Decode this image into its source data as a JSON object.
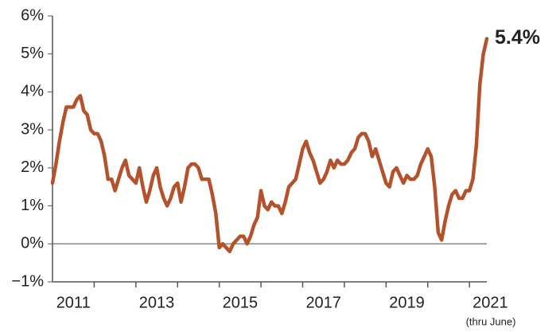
{
  "chart_data": {
    "type": "line",
    "x": [
      2011,
      2011.083,
      2011.167,
      2011.25,
      2011.333,
      2011.417,
      2011.5,
      2011.583,
      2011.667,
      2011.75,
      2011.833,
      2011.917,
      2012,
      2012.083,
      2012.167,
      2012.25,
      2012.333,
      2012.417,
      2012.5,
      2012.583,
      2012.667,
      2012.75,
      2012.833,
      2012.917,
      2013,
      2013.083,
      2013.167,
      2013.25,
      2013.333,
      2013.417,
      2013.5,
      2013.583,
      2013.667,
      2013.75,
      2013.833,
      2013.917,
      2014,
      2014.083,
      2014.167,
      2014.25,
      2014.333,
      2014.417,
      2014.5,
      2014.583,
      2014.667,
      2014.75,
      2014.833,
      2014.917,
      2015,
      2015.083,
      2015.167,
      2015.25,
      2015.333,
      2015.417,
      2015.5,
      2015.583,
      2015.667,
      2015.75,
      2015.833,
      2015.917,
      2016,
      2016.083,
      2016.167,
      2016.25,
      2016.333,
      2016.417,
      2016.5,
      2016.583,
      2016.667,
      2016.75,
      2016.833,
      2016.917,
      2017,
      2017.083,
      2017.167,
      2017.25,
      2017.333,
      2017.417,
      2017.5,
      2017.583,
      2017.667,
      2017.75,
      2017.833,
      2017.917,
      2018,
      2018.083,
      2018.167,
      2018.25,
      2018.333,
      2018.417,
      2018.5,
      2018.583,
      2018.667,
      2018.75,
      2018.833,
      2018.917,
      2019,
      2019.083,
      2019.167,
      2019.25,
      2019.333,
      2019.417,
      2019.5,
      2019.583,
      2019.667,
      2019.75,
      2019.833,
      2019.917,
      2020,
      2020.083,
      2020.167,
      2020.25,
      2020.333,
      2020.417,
      2020.5,
      2020.583,
      2020.667,
      2020.75,
      2020.833,
      2020.917,
      2021,
      2021.083,
      2021.167,
      2021.25,
      2021.333,
      2021.417
    ],
    "values": [
      1.6,
      2.1,
      2.7,
      3.2,
      3.6,
      3.6,
      3.6,
      3.8,
      3.9,
      3.5,
      3.4,
      3.0,
      2.9,
      2.9,
      2.7,
      2.3,
      1.7,
      1.7,
      1.4,
      1.7,
      2.0,
      2.2,
      1.8,
      1.7,
      1.6,
      2.0,
      1.5,
      1.1,
      1.4,
      1.8,
      2.0,
      1.5,
      1.2,
      1.0,
      1.2,
      1.5,
      1.6,
      1.1,
      1.5,
      2.0,
      2.1,
      2.1,
      2.0,
      1.7,
      1.7,
      1.7,
      1.3,
      0.8,
      -0.1,
      0.0,
      -0.1,
      -0.2,
      0.0,
      0.1,
      0.2,
      0.2,
      0.0,
      0.2,
      0.5,
      0.7,
      1.4,
      1.0,
      0.9,
      1.1,
      1.0,
      1.0,
      0.8,
      1.1,
      1.5,
      1.6,
      1.7,
      2.1,
      2.5,
      2.7,
      2.4,
      2.2,
      1.9,
      1.6,
      1.7,
      1.9,
      2.2,
      2.0,
      2.2,
      2.1,
      2.1,
      2.2,
      2.4,
      2.5,
      2.8,
      2.9,
      2.9,
      2.7,
      2.3,
      2.5,
      2.2,
      1.9,
      1.6,
      1.5,
      1.9,
      2.0,
      1.8,
      1.6,
      1.8,
      1.7,
      1.7,
      1.8,
      2.1,
      2.3,
      2.5,
      2.3,
      1.5,
      0.3,
      0.1,
      0.6,
      1.0,
      1.3,
      1.4,
      1.2,
      1.2,
      1.4,
      1.4,
      1.7,
      2.6,
      4.2,
      5.0,
      5.4
    ],
    "color": "#b4522b",
    "end_label": "5.4%",
    "xlim": [
      2011,
      2021.417
    ],
    "xticks": [
      {
        "value": 2011.5,
        "label": "2011"
      },
      {
        "value": 2013.5,
        "label": "2013"
      },
      {
        "value": 2015.5,
        "label": "2015"
      },
      {
        "value": 2017.5,
        "label": "2017"
      },
      {
        "value": 2019.5,
        "label": "2019"
      },
      {
        "value": 2021.5,
        "label": "2021"
      }
    ],
    "x_minor_ticks": [
      2012,
      2013,
      2014,
      2015,
      2016,
      2017,
      2018,
      2019,
      2020,
      2021
    ],
    "x_note": "(thru June)",
    "ylim": [
      -1,
      6
    ],
    "yticks": [
      {
        "value": -1,
        "label": "−1%"
      },
      {
        "value": 0,
        "label": "0%"
      },
      {
        "value": 1,
        "label": "1%"
      },
      {
        "value": 2,
        "label": "2%"
      },
      {
        "value": 3,
        "label": "3%"
      },
      {
        "value": 4,
        "label": "4%"
      },
      {
        "value": 5,
        "label": "5%"
      },
      {
        "value": 6,
        "label": "6%"
      }
    ],
    "zero_line": true
  }
}
